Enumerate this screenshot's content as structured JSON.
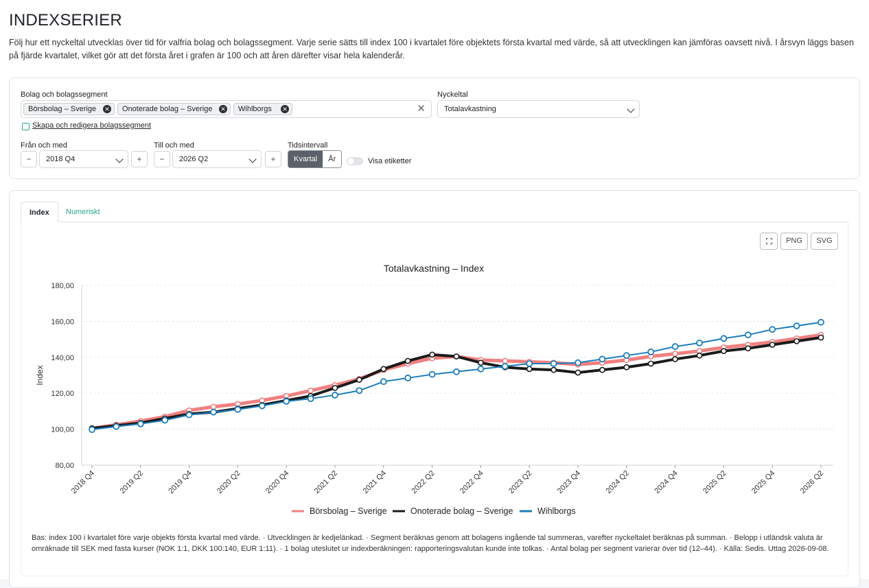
{
  "page": {
    "title": "INDEXSERIER",
    "description": "Följ hur ett nyckeltal utvecklas över tid för valfria bolag och bolagssegment. Varje serie sätts till index 100 i kvartalet före objektets första kvartal med värde, så att utvecklingen kan jämföras oavsett nivå. I årsvyn läggs basen på fjärde kvartalet, vilket gör att det första året i grafen är 100 och att åren därefter visar hela kalenderår."
  },
  "filters": {
    "segments_label": "Bolag och bolagssegment",
    "chips": [
      "Börsbolag – Sverige",
      "Onoterade bolag – Sverige",
      "Wihlborgs"
    ],
    "clear_icon": "close-icon",
    "metric_label": "Nyckeltal",
    "metric_value": "Totalavkastning",
    "edit_link": "Skapa och redigera bolagssegment",
    "from_label": "Från och med",
    "from_value": "2018 Q4",
    "to_label": "Till och med",
    "to_value": "2026 Q2",
    "interval_label": "Tidsintervall",
    "interval_options": [
      "Kvartal",
      "År"
    ],
    "interval_selected": "Kvartal",
    "minus": "−",
    "plus": "+",
    "show_labels": "Visa etiketter",
    "show_labels_on": false
  },
  "tabs": [
    "Index",
    "Numeriskt"
  ],
  "tools": {
    "fullscreen_icon": "fullscreen-icon",
    "png": "PNG",
    "svg": "SVG"
  },
  "chart_data": {
    "type": "line",
    "title": "Totalavkastning – Index",
    "xlabel": "",
    "ylabel": "Index",
    "ylim": [
      80,
      180
    ],
    "yticks": [
      "80,00",
      "100,00",
      "120,00",
      "140,00",
      "160,00",
      "180,00"
    ],
    "x": [
      "2018 Q4",
      "2019 Q1",
      "2019 Q2",
      "2019 Q3",
      "2019 Q4",
      "2020 Q1",
      "2020 Q2",
      "2020 Q3",
      "2020 Q4",
      "2021 Q1",
      "2021 Q2",
      "2021 Q3",
      "2021 Q4",
      "2022 Q1",
      "2022 Q2",
      "2022 Q3",
      "2022 Q4",
      "2023 Q1",
      "2023 Q2",
      "2023 Q3",
      "2023 Q4",
      "2024 Q1",
      "2024 Q2",
      "2024 Q3",
      "2024 Q4",
      "2025 Q1",
      "2025 Q2",
      "2025 Q3",
      "2025 Q4",
      "2026 Q1",
      "2026 Q2"
    ],
    "xtick_labels": [
      "2018 Q4",
      "2019 Q2",
      "2019 Q4",
      "2020 Q2",
      "2020 Q4",
      "2021 Q2",
      "2021 Q4",
      "2022 Q2",
      "2022 Q4",
      "2023 Q2",
      "2023 Q4",
      "2024 Q2",
      "2024 Q4",
      "2025 Q2",
      "2025 Q4",
      "2026 Q2"
    ],
    "grid": true,
    "legend": "bottom",
    "series": [
      {
        "name": "Börsbolag – Sverige",
        "color": "#f08080",
        "values": [
          100.5,
          102.5,
          104.5,
          107,
          110.5,
          112.5,
          114,
          116,
          118.5,
          121.5,
          124.5,
          128,
          133,
          136.5,
          139.5,
          140.5,
          138.5,
          138,
          137.5,
          137,
          136,
          137,
          138.5,
          140.5,
          142,
          143.5,
          145.5,
          147,
          148.5,
          150.5,
          152.5
        ]
      },
      {
        "name": "Onoterade bolag – Sverige",
        "color": "#1a1a1a",
        "values": [
          100.5,
          102,
          103.5,
          106,
          108.5,
          109.5,
          111.5,
          113.5,
          116,
          118.5,
          123,
          127.5,
          133.5,
          138,
          141.5,
          140.5,
          137,
          134.5,
          133.5,
          133,
          131.5,
          133,
          134.5,
          136.5,
          139,
          141,
          143.5,
          145,
          147,
          149,
          151
        ]
      },
      {
        "name": "Wihlborgs",
        "color": "#1b7dbb",
        "values": [
          99.8,
          101.5,
          103,
          105,
          108,
          109.5,
          111,
          113,
          115.5,
          117,
          119,
          121.5,
          126.5,
          128.5,
          130.5,
          132,
          133.5,
          135,
          136.5,
          136.5,
          137,
          139,
          141,
          143,
          146,
          148,
          150.5,
          152.5,
          155.5,
          157.5,
          159.5
        ]
      }
    ]
  },
  "footnote": "Bas: index 100 i kvartalet före varje objekts första kvartal med värde. · Utvecklingen är kedjelänkad. · Segment beräknas genom att bolagens ingående tal summeras, varefter nyckeltalet beräknas på summan. · Belopp i utländsk valuta är omräknade till SEK med fasta kurser (NOK 1:1, DKK 100:140, EUR 1:11). · 1 bolag uteslutet ur indexberäkningen: rapporteringsvalutan kunde inte tolkas. · Antal bolag per segment varierar över tid (12–44). · Källa: Sedis. Uttag 2026-09-08."
}
